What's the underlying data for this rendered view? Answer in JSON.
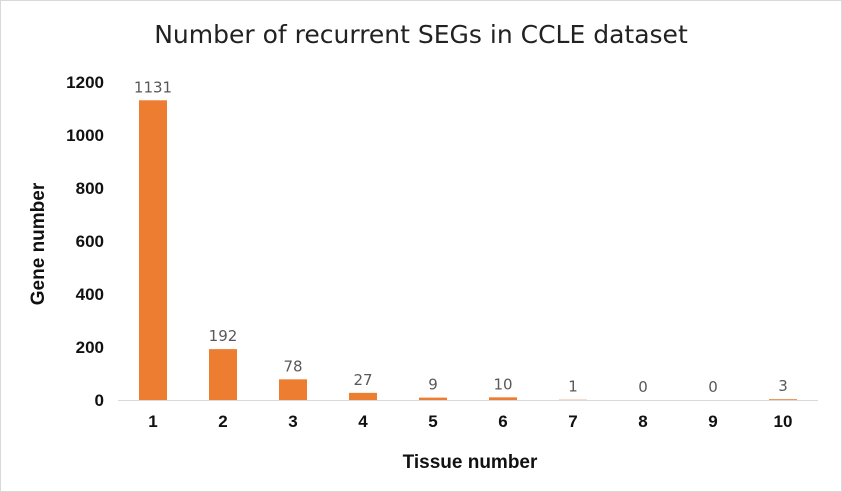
{
  "chart_data": {
    "type": "bar",
    "title": "Number of recurrent SEGs in CCLE dataset",
    "xlabel": "Tissue number",
    "ylabel": "Gene number",
    "categories": [
      "1",
      "2",
      "3",
      "4",
      "5",
      "6",
      "7",
      "8",
      "9",
      "10"
    ],
    "values": [
      1131,
      192,
      78,
      27,
      9,
      10,
      1,
      0,
      0,
      3
    ],
    "data_labels": [
      "1131",
      "192",
      "78",
      "27",
      "9",
      "10",
      "1",
      "0",
      "0",
      "3"
    ],
    "yticks": [
      "0",
      "200",
      "400",
      "600",
      "800",
      "1000",
      "1200"
    ],
    "ylim": [
      0,
      1200
    ],
    "grid": false,
    "legend": "none",
    "bar_color": "#ED7D31",
    "axis_color": "#d9d9d9"
  }
}
